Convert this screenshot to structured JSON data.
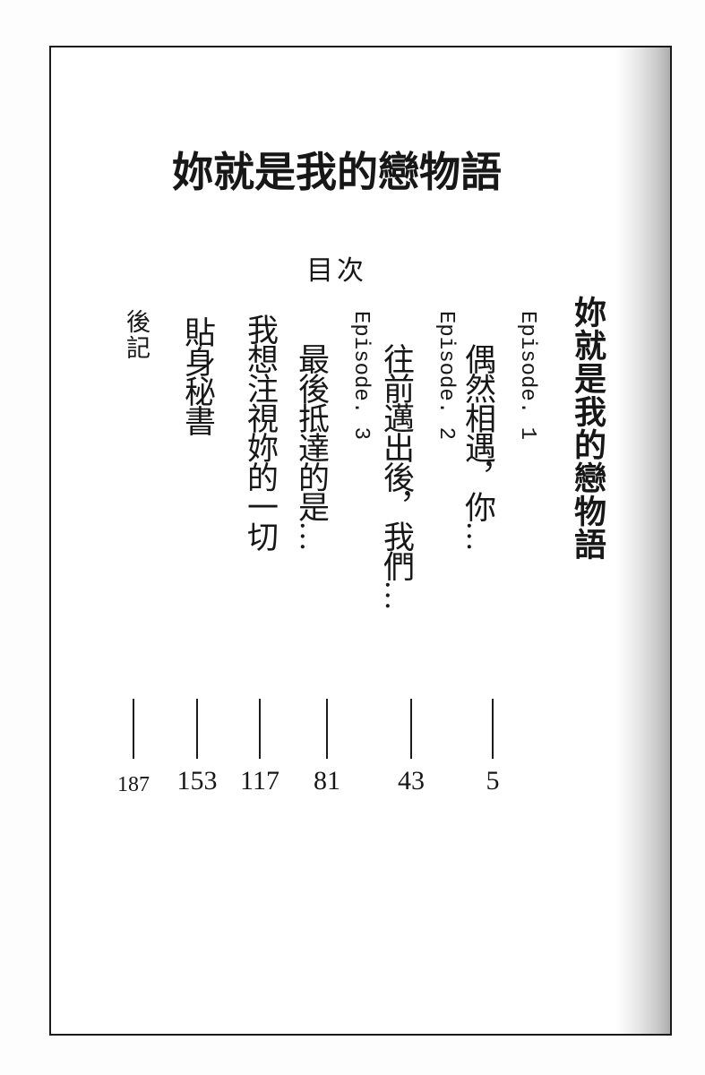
{
  "page": {
    "main_title": "妳就是我的戀物語",
    "toc_heading": "目次"
  },
  "toc": {
    "series_title": "妳就是我的戀物語",
    "entries": [
      {
        "label": "Episode. 1",
        "title": "偶然相遇，你…",
        "page": "5"
      },
      {
        "label": "Episode. 2",
        "title": "往前邁出後，我們…",
        "page": "43"
      },
      {
        "label": "Episode. 3",
        "title": "最後抵達的是…",
        "page": "81"
      },
      {
        "label": "",
        "title": "我想注視妳的一切",
        "page": "117"
      },
      {
        "label": "",
        "title": "貼身秘書",
        "page": "153"
      },
      {
        "label": "",
        "title": "後記",
        "page": "187"
      }
    ]
  },
  "colors": {
    "ink": "#1b1b1b",
    "paper": "#ffffff",
    "edge_shadow": "#a0a0a0"
  }
}
